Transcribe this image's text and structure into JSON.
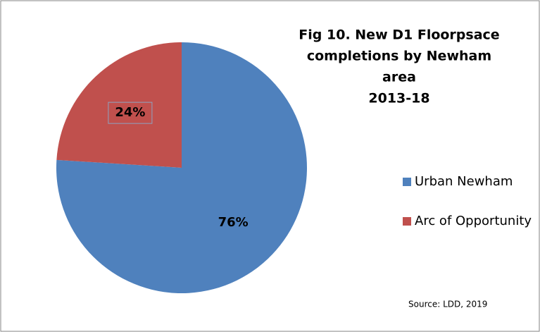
{
  "chart_data": {
    "type": "pie",
    "title": [
      "Fig 10. New D1 Floorpsace",
      "completions by Newham",
      "area",
      "2013-18"
    ],
    "categories": [
      "Urban Newham",
      "Arc of Opportunity"
    ],
    "values": [
      76,
      24
    ],
    "value_labels": [
      "76%",
      "24%"
    ],
    "colors": [
      "#4f81bd",
      "#c0504d"
    ],
    "legend": "right",
    "annotations": [
      "Source: LDD, 2019"
    ]
  }
}
